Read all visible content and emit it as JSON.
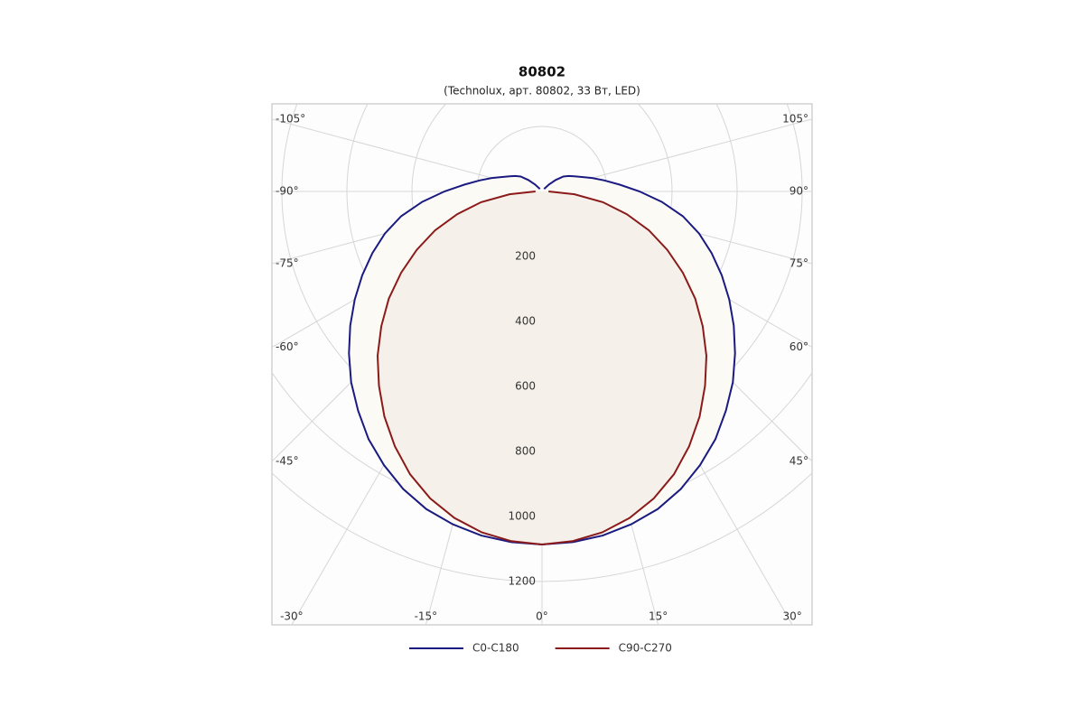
{
  "chart_data": {
    "type": "polar",
    "title": "80802",
    "subtitle": "(Technolux, арт. 80802, 33 Вт, LED)",
    "angles": [
      0,
      5,
      10,
      15,
      20,
      25,
      30,
      35,
      40,
      45,
      50,
      55,
      60,
      65,
      70,
      75,
      80,
      85,
      90,
      95,
      100,
      105,
      110,
      115,
      120,
      125,
      130,
      135,
      140
    ],
    "series": [
      {
        "name": "C0-C180",
        "color": "#1a1a80",
        "fill": "#fbfaf5",
        "values": [
          1086,
          1083,
          1075,
          1060,
          1040,
          1010,
          972,
          930,
          880,
          830,
          775,
          720,
          665,
          610,
          555,
          500,
          440,
          370,
          300,
          240,
          195,
          160,
          130,
          110,
          95,
          80,
          55,
          30,
          10
        ]
      },
      {
        "name": "C90-C270",
        "color": "#8b1a1a",
        "fill": "#f5f1ea",
        "values": [
          1086,
          1080,
          1065,
          1040,
          1005,
          960,
          905,
          845,
          780,
          715,
          645,
          575,
          500,
          425,
          350,
          270,
          190,
          100,
          20,
          null,
          null,
          null,
          null,
          null,
          null,
          null,
          null,
          null,
          null
        ]
      }
    ],
    "rlim": [
      0,
      1200
    ],
    "rticks": [
      200,
      400,
      600,
      800,
      1000,
      1200
    ],
    "angle_ticks": [
      {
        "value": -105,
        "label": "-105°"
      },
      {
        "value": -90,
        "label": "-90°"
      },
      {
        "value": -75,
        "label": "-75°"
      },
      {
        "value": -60,
        "label": "-60°"
      },
      {
        "value": -45,
        "label": "-45°"
      },
      {
        "value": -30,
        "label": "-30°"
      },
      {
        "value": -15,
        "label": "-15°"
      },
      {
        "value": 0,
        "label": "0°"
      },
      {
        "value": 15,
        "label": "15°"
      },
      {
        "value": 30,
        "label": "30°"
      },
      {
        "value": 45,
        "label": "45°"
      },
      {
        "value": 60,
        "label": "60°"
      },
      {
        "value": 75,
        "label": "75°"
      },
      {
        "value": 90,
        "label": "90°"
      },
      {
        "value": 105,
        "label": "105°"
      }
    ],
    "grid": true
  }
}
